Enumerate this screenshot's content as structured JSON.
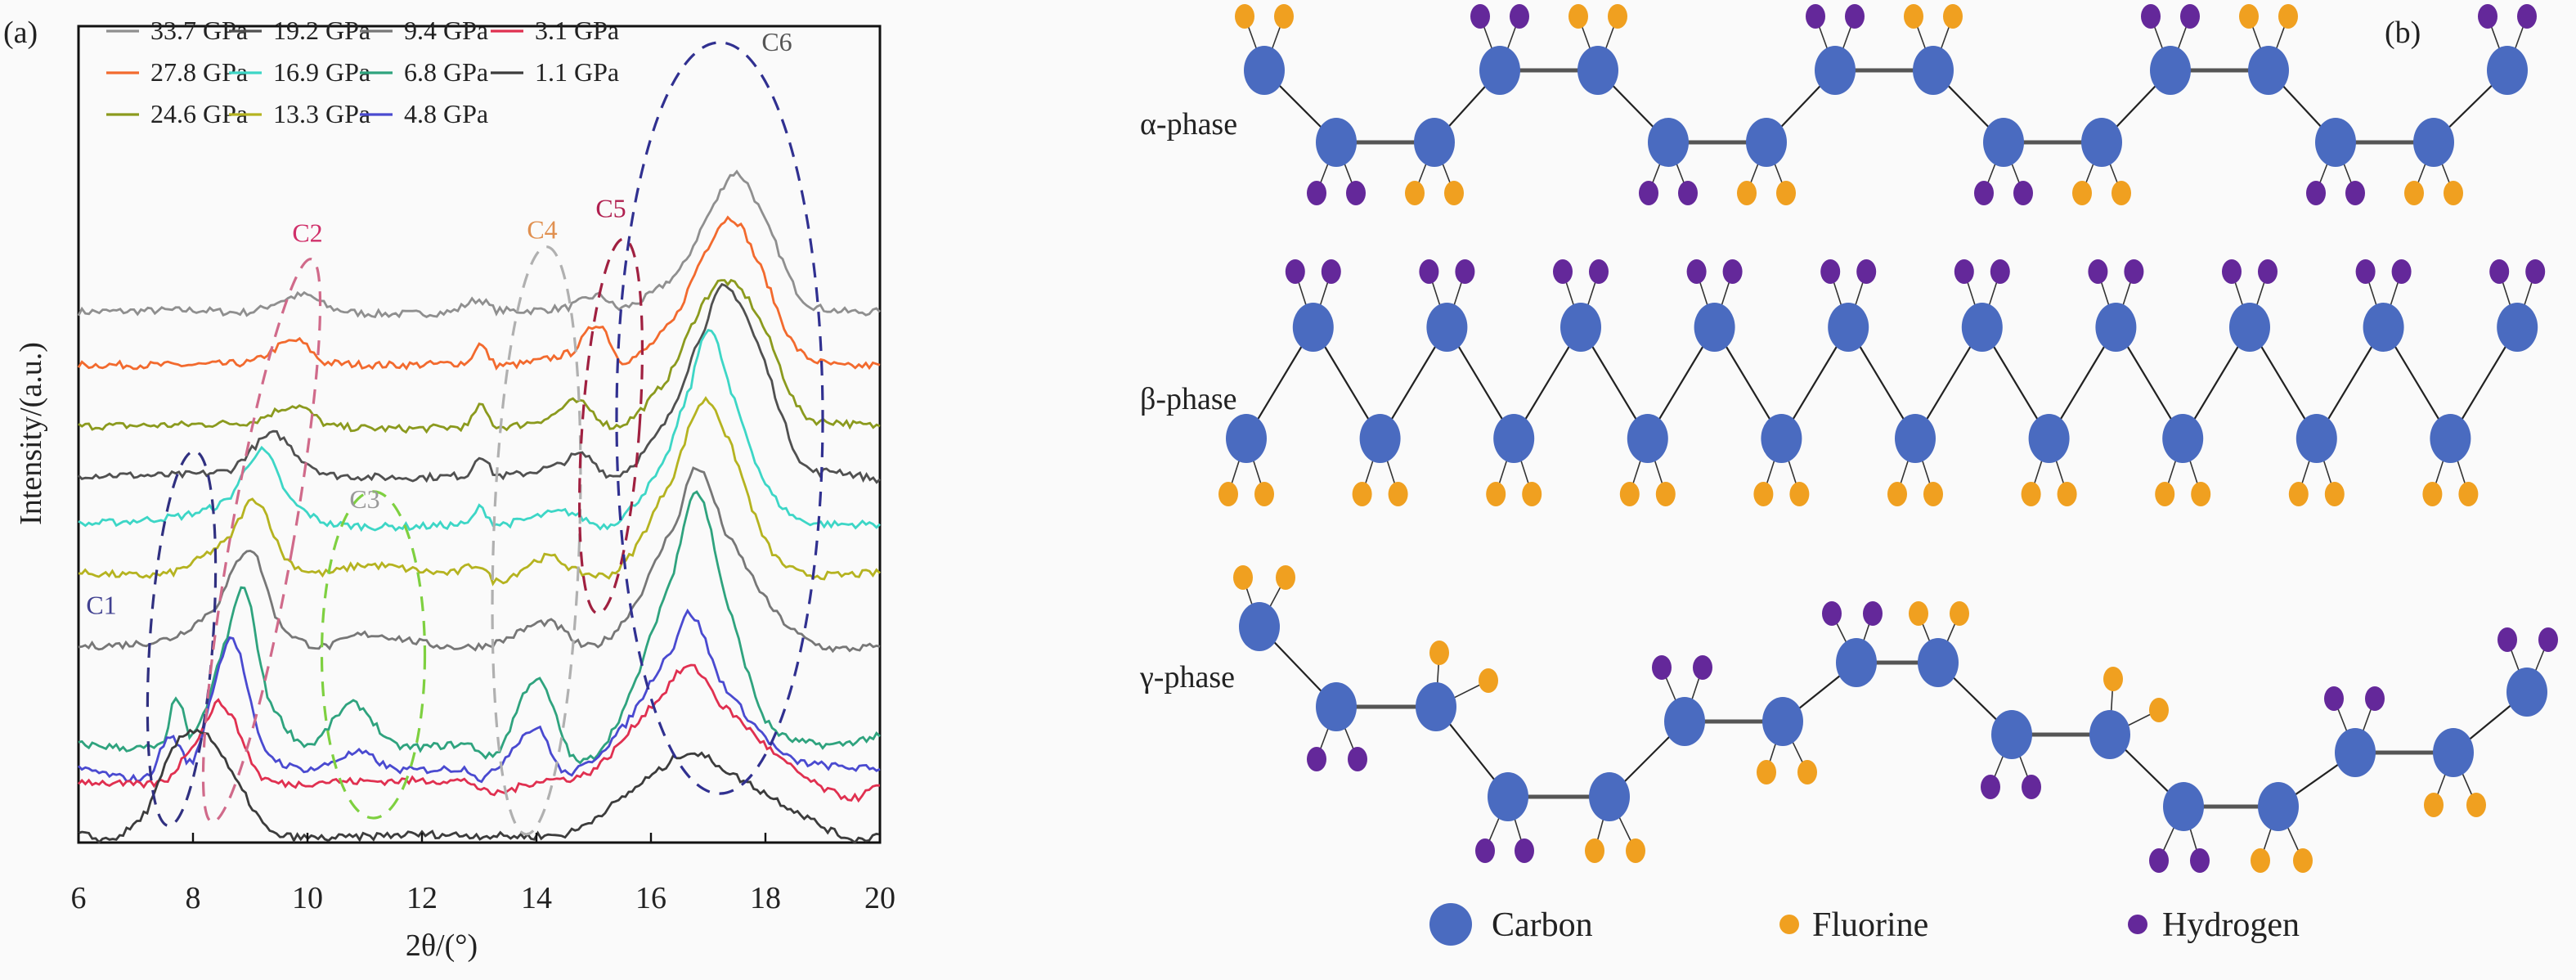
{
  "panel_a": {
    "label": "(a)",
    "chart_data": {
      "type": "line",
      "xlabel": "2θ/(°)",
      "ylabel": "Intensity/(a.u.)",
      "xlim": [
        6,
        20
      ],
      "ylim": [
        0,
        100
      ],
      "xticks": [
        "6",
        "8",
        "10",
        "12",
        "14",
        "16",
        "18",
        "20"
      ],
      "grid": false,
      "legend_placement": "top-left",
      "series": [
        {
          "name": "33.7 GPa",
          "color": "#8f8f8f",
          "points": [
            [
              6,
              65
            ],
            [
              8,
              65.2
            ],
            [
              9,
              65
            ],
            [
              9.6,
              66.5
            ],
            [
              10,
              67
            ],
            [
              10.4,
              65.5
            ],
            [
              11,
              64.8
            ],
            [
              12.5,
              65
            ],
            [
              13,
              66.5
            ],
            [
              13.3,
              65.2
            ],
            [
              14.5,
              65.5
            ],
            [
              15.1,
              67
            ],
            [
              15.5,
              65.5
            ],
            [
              16.5,
              70
            ],
            [
              17.1,
              78
            ],
            [
              17.5,
              82
            ],
            [
              18,
              76
            ],
            [
              18.6,
              67
            ],
            [
              19.2,
              65.2
            ],
            [
              20,
              65
            ]
          ]
        },
        {
          "name": "27.8 GPa",
          "color": "#f26a2e",
          "points": [
            [
              6,
              58.5
            ],
            [
              9,
              58.8
            ],
            [
              9.8,
              61.5
            ],
            [
              10.3,
              58.8
            ],
            [
              12.8,
              58.8
            ],
            [
              13,
              61
            ],
            [
              13.3,
              58.5
            ],
            [
              14.6,
              60
            ],
            [
              15.1,
              63.5
            ],
            [
              15.5,
              59
            ],
            [
              16.4,
              64
            ],
            [
              17,
              73
            ],
            [
              17.4,
              76.5
            ],
            [
              17.8,
              72
            ],
            [
              18.5,
              61
            ],
            [
              19.2,
              58.5
            ],
            [
              20,
              58.5
            ]
          ]
        },
        {
          "name": "24.6 GPa",
          "color": "#8b9a1e",
          "points": [
            [
              6,
              51
            ],
            [
              9,
              51.5
            ],
            [
              9.8,
              53.5
            ],
            [
              10.4,
              51
            ],
            [
              12.8,
              51
            ],
            [
              13,
              53.5
            ],
            [
              13.3,
              51
            ],
            [
              14.2,
              52
            ],
            [
              14.7,
              54
            ],
            [
              15.4,
              51
            ],
            [
              16.3,
              57
            ],
            [
              17,
              67
            ],
            [
              17.4,
              68.5
            ],
            [
              17.9,
              64
            ],
            [
              18.6,
              53
            ],
            [
              19.3,
              51.5
            ],
            [
              20,
              51
            ]
          ]
        },
        {
          "name": "19.2 GPa",
          "color": "#505050",
          "points": [
            [
              6,
              45
            ],
            [
              8.6,
              45.5
            ],
            [
              9.4,
              50
            ],
            [
              9.9,
              47
            ],
            [
              10.4,
              45
            ],
            [
              12.8,
              45
            ],
            [
              13,
              47.5
            ],
            [
              13.3,
              45
            ],
            [
              14.3,
              46
            ],
            [
              14.8,
              47.5
            ],
            [
              15.4,
              45
            ],
            [
              16.3,
              52
            ],
            [
              17,
              64
            ],
            [
              17.3,
              68
            ],
            [
              17.8,
              62
            ],
            [
              18.6,
              47
            ],
            [
              19.3,
              45.5
            ],
            [
              20,
              44.5
            ]
          ]
        },
        {
          "name": "16.9 GPa",
          "color": "#3dd6c6",
          "points": [
            [
              6,
              39
            ],
            [
              7.8,
              40
            ],
            [
              8.6,
              42
            ],
            [
              9.2,
              48
            ],
            [
              9.7,
              42
            ],
            [
              10.4,
              39
            ],
            [
              12.8,
              39
            ],
            [
              13,
              41
            ],
            [
              13.3,
              39
            ],
            [
              14.5,
              40.5
            ],
            [
              15.3,
              39
            ],
            [
              16.2,
              46
            ],
            [
              16.7,
              56
            ],
            [
              17,
              63
            ],
            [
              17.4,
              55
            ],
            [
              18,
              44
            ],
            [
              18.6,
              39.5
            ],
            [
              20,
              39
            ]
          ]
        },
        {
          "name": "13.3 GPa",
          "color": "#b5b320",
          "points": [
            [
              6,
              33
            ],
            [
              7.6,
              33
            ],
            [
              8.6,
              37
            ],
            [
              9.1,
              42
            ],
            [
              9.6,
              35
            ],
            [
              10.2,
              33
            ],
            [
              11,
              34
            ],
            [
              12.5,
              33
            ],
            [
              13,
              34
            ],
            [
              13.3,
              32
            ],
            [
              14.2,
              35
            ],
            [
              14.8,
              33
            ],
            [
              15.5,
              34
            ],
            [
              16.4,
              45
            ],
            [
              16.9,
              54
            ],
            [
              17.3,
              50
            ],
            [
              18,
              37
            ],
            [
              18.6,
              33
            ],
            [
              20,
              33
            ]
          ]
        },
        {
          "name": "9.4 GPa",
          "color": "#777777",
          "points": [
            [
              6,
              24
            ],
            [
              7.6,
              25
            ],
            [
              8.4,
              29
            ],
            [
              9,
              36
            ],
            [
              9.5,
              27
            ],
            [
              10.2,
              24
            ],
            [
              11,
              25.5
            ],
            [
              12.5,
              24
            ],
            [
              13.3,
              24.5
            ],
            [
              14.2,
              27
            ],
            [
              14.9,
              24
            ],
            [
              15.6,
              28
            ],
            [
              16.5,
              40
            ],
            [
              16.8,
              46
            ],
            [
              17.3,
              38
            ],
            [
              18.2,
              28
            ],
            [
              19,
              24
            ],
            [
              20,
              24
            ]
          ]
        },
        {
          "name": "6.8 GPa",
          "color": "#2fa37e",
          "points": [
            [
              6,
              12
            ],
            [
              7.5,
              12
            ],
            [
              7.7,
              18
            ],
            [
              8,
              13
            ],
            [
              8.6,
              25
            ],
            [
              8.9,
              31
            ],
            [
              9.3,
              18
            ],
            [
              10,
              12
            ],
            [
              10.8,
              17
            ],
            [
              11.5,
              12
            ],
            [
              12.8,
              12
            ],
            [
              13.3,
              11
            ],
            [
              14,
              20
            ],
            [
              14.7,
              10
            ],
            [
              15.5,
              16
            ],
            [
              16.4,
              33
            ],
            [
              16.8,
              43
            ],
            [
              17.3,
              30
            ],
            [
              18,
              15
            ],
            [
              19,
              12
            ],
            [
              20,
              13
            ]
          ]
        },
        {
          "name": "4.8 GPa",
          "color": "#4a4ad0",
          "points": [
            [
              6,
              9
            ],
            [
              7.2,
              8
            ],
            [
              7.6,
              13
            ],
            [
              8,
              10
            ],
            [
              8.4,
              20
            ],
            [
              8.7,
              25
            ],
            [
              9.2,
              12
            ],
            [
              10,
              9
            ],
            [
              10.9,
              11
            ],
            [
              11.5,
              9
            ],
            [
              12.8,
              9
            ],
            [
              13.1,
              8
            ],
            [
              14,
              14
            ],
            [
              14.5,
              8.5
            ],
            [
              15.5,
              14
            ],
            [
              16.4,
              24
            ],
            [
              16.7,
              28
            ],
            [
              17.2,
              20
            ],
            [
              18,
              13
            ],
            [
              18.5,
              10
            ],
            [
              20,
              9
            ]
          ]
        },
        {
          "name": "3.1 GPa",
          "color": "#e03050",
          "points": [
            [
              6,
              7.5
            ],
            [
              7.5,
              7.5
            ],
            [
              8.1,
              13
            ],
            [
              8.5,
              17
            ],
            [
              9.2,
              8
            ],
            [
              10.5,
              7.5
            ],
            [
              12.8,
              7.5
            ],
            [
              13.2,
              6
            ],
            [
              14,
              7.5
            ],
            [
              15,
              9
            ],
            [
              16.2,
              18
            ],
            [
              16.7,
              21.5
            ],
            [
              17.2,
              17
            ],
            [
              18.5,
              9
            ],
            [
              19.5,
              5.5
            ],
            [
              20,
              7
            ]
          ]
        },
        {
          "name": "1.1 GPa",
          "color": "#3c3c3c",
          "points": [
            [
              6,
              1
            ],
            [
              6.6,
              0.5
            ],
            [
              7.2,
              4
            ],
            [
              7.7,
              12
            ],
            [
              8.2,
              13.5
            ],
            [
              8.8,
              7
            ],
            [
              9.4,
              1
            ],
            [
              12,
              1
            ],
            [
              14.5,
              1
            ],
            [
              15.2,
              4
            ],
            [
              16.2,
              9
            ],
            [
              16.7,
              11
            ],
            [
              17.5,
              8
            ],
            [
              18.5,
              4
            ],
            [
              19.5,
              0.5
            ],
            [
              20,
              1
            ]
          ]
        }
      ],
      "annotations": [
        {
          "label": "C1",
          "label_at": [
            6.4,
            28
          ],
          "center": [
            7.8,
            25
          ],
          "radii": [
            0.55,
            23
          ],
          "color": "#303080",
          "label_color": "#404090"
        },
        {
          "label": "C2",
          "label_at": [
            10,
            73.6
          ],
          "center": [
            9.2,
            37
          ],
          "radii": [
            0.55,
            35
          ],
          "color": "#d06a8a",
          "label_color": "#d0306a"
        },
        {
          "label": "C3",
          "label_at": [
            11,
            41
          ],
          "center": [
            11.15,
            23
          ],
          "radii": [
            0.9,
            20
          ],
          "color": "#7ed040",
          "label_color": "#999999"
        },
        {
          "label": "C4",
          "label_at": [
            14.1,
            74
          ],
          "center": [
            14,
            37
          ],
          "radii": [
            0.75,
            36
          ],
          "color": "#b0b0b0",
          "label_color": "#e09050"
        },
        {
          "label": "C5",
          "label_at": [
            15.3,
            76.6
          ],
          "center": [
            15.3,
            51
          ],
          "radii": [
            0.5,
            23
          ],
          "color": "#a02040",
          "label_color": "#b02050"
        },
        {
          "label": "C6",
          "label_at": [
            18.2,
            97
          ],
          "center": [
            17.2,
            52
          ],
          "radii": [
            1.8,
            46
          ],
          "color": "#303090",
          "label_color": "#555555"
        }
      ]
    }
  },
  "panel_b": {
    "label": "(b)",
    "phases": [
      {
        "name": "α-phase",
        "substituents": [
          "F",
          "H",
          "F",
          "H",
          "F",
          "H",
          "F",
          "H",
          "F",
          "H",
          "F",
          "H",
          "F",
          "H",
          "F",
          "H"
        ]
      },
      {
        "name": "β-phase",
        "substituents": [
          "F",
          "H",
          "F",
          "H",
          "F",
          "H",
          "F",
          "H",
          "F",
          "H",
          "F",
          "H",
          "F",
          "H",
          "F",
          "H",
          "F",
          "H",
          "F",
          "H"
        ]
      },
      {
        "name": "γ-phase",
        "substituents": [
          "F",
          "H",
          "F",
          "H",
          "F",
          "H",
          "F",
          "H",
          "F",
          "H",
          "F",
          "H",
          "F",
          "H",
          "F",
          "H"
        ]
      }
    ],
    "legend": [
      {
        "key": "C",
        "label": "Carbon",
        "color": "#4a6bc0"
      },
      {
        "key": "F",
        "label": "Fluorine",
        "color": "#f0a020"
      },
      {
        "key": "H",
        "label": "Hydrogen",
        "color": "#64289a"
      }
    ]
  }
}
